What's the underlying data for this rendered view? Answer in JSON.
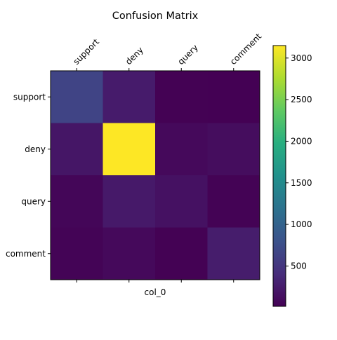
{
  "chart_data": {
    "type": "heatmap",
    "title": "Confusion Matrix",
    "xlabel": "col_0",
    "ylabel": "",
    "x_categories": [
      "support",
      "deny",
      "query",
      "comment"
    ],
    "y_categories": [
      "support",
      "deny",
      "query",
      "comment"
    ],
    "values": [
      [
        650,
        250,
        20,
        15
      ],
      [
        200,
        3150,
        90,
        120
      ],
      [
        60,
        230,
        160,
        30
      ],
      [
        40,
        90,
        20,
        260
      ]
    ],
    "colormap": "viridis",
    "vmin": 15,
    "vmax": 3150,
    "colorbar_ticks": [
      500,
      1000,
      1500,
      2000,
      2500,
      3000
    ],
    "colorbar_tick_labels": [
      "500",
      "1000",
      "1500",
      "2000",
      "2500",
      "3000"
    ]
  }
}
